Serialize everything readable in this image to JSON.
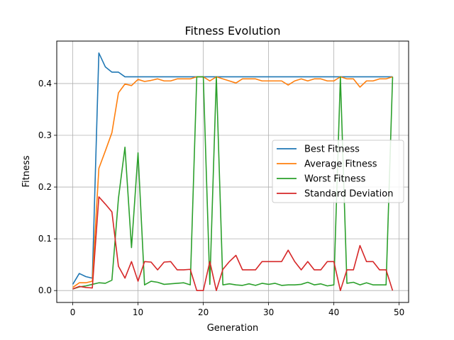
{
  "chart_data": {
    "type": "line",
    "title": "Fitness Evolution",
    "xlabel": "Generation",
    "ylabel": "Fitness",
    "xlim": [
      -2.45,
      51.45
    ],
    "ylim": [
      -0.023,
      0.482
    ],
    "xticks": [
      0,
      10,
      20,
      30,
      40,
      50
    ],
    "yticks": [
      0.0,
      0.1,
      0.2,
      0.3,
      0.4
    ],
    "xtick_labels": [
      "0",
      "10",
      "20",
      "30",
      "40",
      "50"
    ],
    "ytick_labels": [
      "0.0",
      "0.1",
      "0.2",
      "0.3",
      "0.4"
    ],
    "grid": true,
    "legend_position": "center-right",
    "x": [
      0,
      1,
      2,
      3,
      4,
      5,
      6,
      7,
      8,
      9,
      10,
      11,
      12,
      13,
      14,
      15,
      16,
      17,
      18,
      19,
      20,
      21,
      22,
      23,
      24,
      25,
      26,
      27,
      28,
      29,
      30,
      31,
      32,
      33,
      34,
      35,
      36,
      37,
      38,
      39,
      40,
      41,
      42,
      43,
      44,
      45,
      46,
      47,
      48,
      49
    ],
    "series": [
      {
        "name": "Best Fitness",
        "color": "#1f77b4",
        "values": [
          0.012,
          0.033,
          0.027,
          0.024,
          0.459,
          0.432,
          0.422,
          0.422,
          0.413,
          0.413,
          0.413,
          0.413,
          0.413,
          0.413,
          0.413,
          0.413,
          0.413,
          0.413,
          0.413,
          0.413,
          0.413,
          0.413,
          0.413,
          0.413,
          0.413,
          0.413,
          0.413,
          0.413,
          0.413,
          0.413,
          0.413,
          0.413,
          0.413,
          0.413,
          0.413,
          0.413,
          0.413,
          0.413,
          0.413,
          0.413,
          0.413,
          0.413,
          0.413,
          0.413,
          0.413,
          0.413,
          0.413,
          0.413,
          0.413,
          0.413
        ]
      },
      {
        "name": "Average Fitness",
        "color": "#ff7f0e",
        "values": [
          0.006,
          0.015,
          0.015,
          0.018,
          0.236,
          0.27,
          0.305,
          0.382,
          0.399,
          0.396,
          0.408,
          0.404,
          0.406,
          0.409,
          0.405,
          0.405,
          0.409,
          0.409,
          0.409,
          0.413,
          0.413,
          0.405,
          0.413,
          0.409,
          0.405,
          0.401,
          0.409,
          0.409,
          0.409,
          0.405,
          0.405,
          0.405,
          0.405,
          0.397,
          0.405,
          0.409,
          0.405,
          0.409,
          0.409,
          0.405,
          0.405,
          0.413,
          0.409,
          0.409,
          0.393,
          0.405,
          0.405,
          0.409,
          0.409,
          0.413
        ]
      },
      {
        "name": "Worst Fitness",
        "color": "#2ca02c",
        "values": [
          0.003,
          0.007,
          0.009,
          0.012,
          0.015,
          0.014,
          0.02,
          0.178,
          0.277,
          0.083,
          0.266,
          0.011,
          0.018,
          0.016,
          0.012,
          0.013,
          0.014,
          0.015,
          0.011,
          0.413,
          0.413,
          0.012,
          0.413,
          0.011,
          0.013,
          0.011,
          0.01,
          0.013,
          0.01,
          0.014,
          0.012,
          0.014,
          0.01,
          0.011,
          0.011,
          0.012,
          0.016,
          0.011,
          0.013,
          0.009,
          0.011,
          0.413,
          0.014,
          0.016,
          0.011,
          0.015,
          0.011,
          0.011,
          0.011,
          0.413
        ]
      },
      {
        "name": "Standard Deviation",
        "color": "#d62728",
        "values": [
          0.003,
          0.008,
          0.006,
          0.005,
          0.181,
          0.167,
          0.152,
          0.047,
          0.024,
          0.056,
          0.018,
          0.056,
          0.055,
          0.04,
          0.055,
          0.056,
          0.04,
          0.04,
          0.041,
          0.0,
          0.0,
          0.056,
          0.0,
          0.041,
          0.056,
          0.068,
          0.04,
          0.04,
          0.04,
          0.056,
          0.056,
          0.056,
          0.056,
          0.078,
          0.056,
          0.04,
          0.056,
          0.04,
          0.04,
          0.056,
          0.056,
          0.0,
          0.04,
          0.04,
          0.087,
          0.056,
          0.056,
          0.04,
          0.04,
          0.0
        ]
      }
    ]
  }
}
